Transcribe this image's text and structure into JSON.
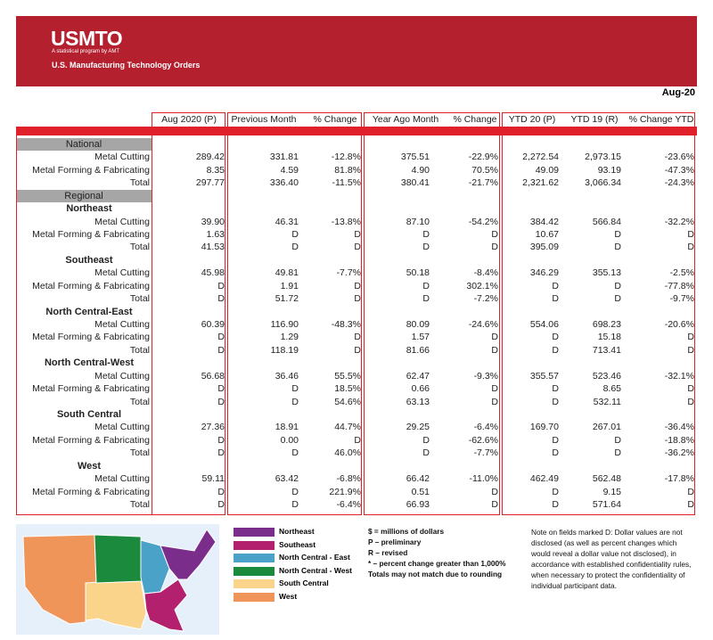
{
  "header": {
    "logo": "USMTO",
    "logo_tagline": "A statistical program by AMT",
    "title": "U.S. Manufacturing Technology Orders",
    "period": "Aug-20"
  },
  "table": {
    "columns": [
      "Aug 2020 (P)",
      "Previous Month",
      "% Change",
      "Year Ago Month",
      "% Change",
      "YTD 20 (P)",
      "YTD 19 (R)",
      "% Change YTD"
    ],
    "sections": [
      {
        "name": "National",
        "rows": [
          {
            "label": "Metal Cutting",
            "cells": [
              "289.42",
              "331.81",
              "-12.8%",
              "375.51",
              "-22.9%",
              "2,272.54",
              "2,973.15",
              "-23.6%"
            ]
          },
          {
            "label": "Metal Forming & Fabricating",
            "cells": [
              "8.35",
              "4.59",
              "81.8%",
              "4.90",
              "70.5%",
              "49.09",
              "93.19",
              "-47.3%"
            ]
          },
          {
            "label": "Total",
            "cells": [
              "297.77",
              "336.40",
              "-11.5%",
              "380.41",
              "-21.7%",
              "2,321.62",
              "3,066.34",
              "-24.3%"
            ]
          }
        ]
      },
      {
        "name": "Regional",
        "regions": [
          {
            "name": "Northeast",
            "rows": [
              {
                "label": "Metal Cutting",
                "cells": [
                  "39.90",
                  "46.31",
                  "-13.8%",
                  "87.10",
                  "-54.2%",
                  "384.42",
                  "566.84",
                  "-32.2%"
                ]
              },
              {
                "label": "Metal Forming & Fabricating",
                "cells": [
                  "1.63",
                  "D",
                  "D",
                  "D",
                  "D",
                  "10.67",
                  "D",
                  "D"
                ]
              },
              {
                "label": "Total",
                "cells": [
                  "41.53",
                  "D",
                  "D",
                  "D",
                  "D",
                  "395.09",
                  "D",
                  "D"
                ]
              }
            ]
          },
          {
            "name": "Southeast",
            "rows": [
              {
                "label": "Metal Cutting",
                "cells": [
                  "45.98",
                  "49.81",
                  "-7.7%",
                  "50.18",
                  "-8.4%",
                  "346.29",
                  "355.13",
                  "-2.5%"
                ]
              },
              {
                "label": "Metal Forming & Fabricating",
                "cells": [
                  "D",
                  "1.91",
                  "D",
                  "D",
                  "302.1%",
                  "D",
                  "D",
                  "-77.8%"
                ]
              },
              {
                "label": "Total",
                "cells": [
                  "D",
                  "51.72",
                  "D",
                  "D",
                  "-7.2%",
                  "D",
                  "D",
                  "-9.7%"
                ]
              }
            ]
          },
          {
            "name": "North Central-East",
            "rows": [
              {
                "label": "Metal Cutting",
                "cells": [
                  "60.39",
                  "116.90",
                  "-48.3%",
                  "80.09",
                  "-24.6%",
                  "554.06",
                  "698.23",
                  "-20.6%"
                ]
              },
              {
                "label": "Metal Forming & Fabricating",
                "cells": [
                  "D",
                  "1.29",
                  "D",
                  "1.57",
                  "D",
                  "D",
                  "15.18",
                  "D"
                ]
              },
              {
                "label": "Total",
                "cells": [
                  "D",
                  "118.19",
                  "D",
                  "81.66",
                  "D",
                  "D",
                  "713.41",
                  "D"
                ]
              }
            ]
          },
          {
            "name": "North Central-West",
            "rows": [
              {
                "label": "Metal Cutting",
                "cells": [
                  "56.68",
                  "36.46",
                  "55.5%",
                  "62.47",
                  "-9.3%",
                  "355.57",
                  "523.46",
                  "-32.1%"
                ]
              },
              {
                "label": "Metal Forming & Fabricating",
                "cells": [
                  "D",
                  "D",
                  "18.5%",
                  "0.66",
                  "D",
                  "D",
                  "8.65",
                  "D"
                ]
              },
              {
                "label": "Total",
                "cells": [
                  "D",
                  "D",
                  "54.6%",
                  "63.13",
                  "D",
                  "D",
                  "532.11",
                  "D"
                ]
              }
            ]
          },
          {
            "name": "South Central",
            "rows": [
              {
                "label": "Metal Cutting",
                "cells": [
                  "27.36",
                  "18.91",
                  "44.7%",
                  "29.25",
                  "-6.4%",
                  "169.70",
                  "267.01",
                  "-36.4%"
                ]
              },
              {
                "label": "Metal Forming & Fabricating",
                "cells": [
                  "D",
                  "0.00",
                  "D",
                  "D",
                  "-62.6%",
                  "D",
                  "D",
                  "-18.8%"
                ]
              },
              {
                "label": "Total",
                "cells": [
                  "D",
                  "D",
                  "46.0%",
                  "D",
                  "-7.7%",
                  "D",
                  "D",
                  "-36.2%"
                ]
              }
            ]
          },
          {
            "name": "West",
            "rows": [
              {
                "label": "Metal Cutting",
                "cells": [
                  "59.11",
                  "63.42",
                  "-6.8%",
                  "66.42",
                  "-11.0%",
                  "462.49",
                  "562.48",
                  "-17.8%"
                ]
              },
              {
                "label": "Metal Forming & Fabricating",
                "cells": [
                  "D",
                  "D",
                  "221.9%",
                  "0.51",
                  "D",
                  "D",
                  "9.15",
                  "D"
                ]
              },
              {
                "label": "Total",
                "cells": [
                  "D",
                  "D",
                  "-6.4%",
                  "66.93",
                  "D",
                  "D",
                  "571.64",
                  "D"
                ]
              }
            ]
          }
        ]
      }
    ]
  },
  "legend": [
    {
      "name": "Northeast",
      "color": "#7b2d8b"
    },
    {
      "name": "Southeast",
      "color": "#b3206e"
    },
    {
      "name": "North Central - East",
      "color": "#4aa2c9"
    },
    {
      "name": "North Central - West",
      "color": "#1b8a3d"
    },
    {
      "name": "South Central",
      "color": "#fbd48c"
    },
    {
      "name": "West",
      "color": "#f0955a"
    }
  ],
  "notes": [
    "$ = millions of dollars",
    "P – preliminary",
    "R – revised",
    "* – percent change greater than 1,000%",
    "Totals may not match due to rounding"
  ],
  "disclosure_note": "Note on fields marked D: Dollar values are not disclosed (as well as percent changes which would reveal a dollar value not disclosed), in accordance with established confidentiality rules, when necessary to protect the confidentiality of individual participant data."
}
